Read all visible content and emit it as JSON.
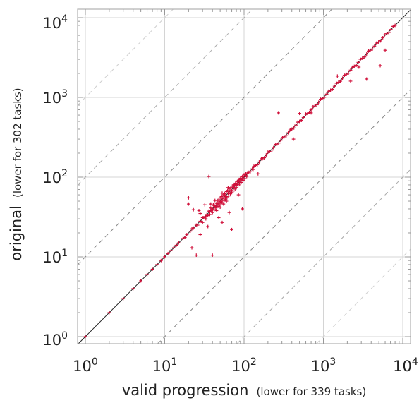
{
  "chart_data": {
    "type": "scatter",
    "scale": "log-log",
    "xlabel": "valid progression",
    "xlabel_note": "(lower for 339 tasks)",
    "ylabel": "original",
    "ylabel_note": "(lower for 302 tasks)",
    "xlim": [
      0.9,
      11000
    ],
    "ylim": [
      0.9,
      11000
    ],
    "ticks": [
      {
        "value": 1,
        "base": "10",
        "exp": "0"
      },
      {
        "value": 10,
        "base": "10",
        "exp": "1"
      },
      {
        "value": 100,
        "base": "10",
        "exp": "2"
      },
      {
        "value": 1000,
        "base": "10",
        "exp": "3"
      },
      {
        "value": 10000,
        "base": "10",
        "exp": "4"
      }
    ],
    "reference_lines": {
      "diagonal": "y = x",
      "dashed_factors": [
        10,
        100,
        1000
      ]
    },
    "grid": true,
    "marker": "+",
    "series": [
      {
        "color": "#d0103a",
        "points": [
          [
            1,
            1
          ],
          [
            2,
            2
          ],
          [
            3,
            3
          ],
          [
            4,
            4
          ],
          [
            5,
            5
          ],
          [
            6,
            6
          ],
          [
            7,
            7
          ],
          [
            8,
            8
          ],
          [
            9,
            9
          ],
          [
            10,
            10
          ],
          [
            11,
            11
          ],
          [
            12,
            12
          ],
          [
            13,
            13
          ],
          [
            14,
            14
          ],
          [
            15,
            15
          ],
          [
            17,
            17
          ],
          [
            19,
            19
          ],
          [
            21,
            21
          ],
          [
            23,
            23
          ],
          [
            25,
            25
          ],
          [
            28,
            28
          ],
          [
            31,
            31
          ],
          [
            34,
            34
          ],
          [
            37,
            37
          ],
          [
            40,
            40
          ],
          [
            43,
            43
          ],
          [
            46,
            46
          ],
          [
            50,
            50
          ],
          [
            54,
            54
          ],
          [
            58,
            58
          ],
          [
            63,
            63
          ],
          [
            68,
            68
          ],
          [
            74,
            74
          ],
          [
            80,
            80
          ],
          [
            87,
            87
          ],
          [
            95,
            95
          ],
          [
            105,
            105
          ],
          [
            115,
            115
          ],
          [
            127,
            127
          ],
          [
            140,
            140
          ],
          [
            155,
            155
          ],
          [
            170,
            170
          ],
          [
            190,
            190
          ],
          [
            210,
            210
          ],
          [
            235,
            235
          ],
          [
            260,
            260
          ],
          [
            290,
            290
          ],
          [
            320,
            320
          ],
          [
            360,
            360
          ],
          [
            400,
            400
          ],
          [
            450,
            450
          ],
          [
            500,
            500
          ],
          [
            560,
            560
          ],
          [
            630,
            630
          ],
          [
            700,
            700
          ],
          [
            780,
            780
          ],
          [
            870,
            870
          ],
          [
            970,
            970
          ],
          [
            1100,
            1100
          ],
          [
            1230,
            1230
          ],
          [
            1380,
            1380
          ],
          [
            1550,
            1550
          ],
          [
            1740,
            1740
          ],
          [
            1950,
            1950
          ],
          [
            2200,
            2200
          ],
          [
            2450,
            2450
          ],
          [
            2750,
            2750
          ],
          [
            3100,
            3100
          ],
          [
            3500,
            3500
          ],
          [
            3900,
            3900
          ],
          [
            4400,
            4400
          ],
          [
            4950,
            4950
          ],
          [
            5600,
            5600
          ],
          [
            6300,
            6300
          ],
          [
            7100,
            7100
          ],
          [
            8000,
            8000
          ],
          [
            18,
            17.5
          ],
          [
            22,
            22.5
          ],
          [
            26,
            25
          ],
          [
            30,
            31
          ],
          [
            33,
            32
          ],
          [
            36,
            37.5
          ],
          [
            39,
            38
          ],
          [
            42,
            44
          ],
          [
            45,
            43
          ],
          [
            48,
            49
          ],
          [
            52,
            50
          ],
          [
            56,
            58
          ],
          [
            60,
            57
          ],
          [
            65,
            67
          ],
          [
            70,
            68
          ],
          [
            76,
            79
          ],
          [
            83,
            81
          ],
          [
            90,
            93
          ],
          [
            98,
            96
          ],
          [
            110,
            113
          ],
          [
            120,
            117
          ],
          [
            133,
            137
          ],
          [
            147,
            143
          ],
          [
            165,
            170
          ],
          [
            180,
            175
          ],
          [
            200,
            206
          ],
          [
            225,
            219
          ],
          [
            250,
            258
          ],
          [
            275,
            268
          ],
          [
            305,
            314
          ],
          [
            340,
            331
          ],
          [
            380,
            391
          ],
          [
            425,
            414
          ],
          [
            475,
            489
          ],
          [
            530,
            516
          ],
          [
            600,
            618
          ],
          [
            665,
            648
          ],
          [
            740,
            762
          ],
          [
            830,
            808
          ],
          [
            920,
            948
          ],
          [
            1030,
            1003
          ],
          [
            1160,
            1195
          ],
          [
            1300,
            1266
          ],
          [
            1460,
            1504
          ],
          [
            1640,
            1597
          ],
          [
            1840,
            1895
          ],
          [
            2070,
            2016
          ],
          [
            2320,
            2390
          ],
          [
            2600,
            2532
          ],
          [
            2920,
            3008
          ],
          [
            3300,
            3214
          ],
          [
            3700,
            3811
          ],
          [
            4150,
            4041
          ],
          [
            4650,
            4790
          ],
          [
            5250,
            5113
          ],
          [
            5900,
            6077
          ],
          [
            6700,
            6525
          ],
          [
            7550,
            7777
          ],
          [
            30,
            27
          ],
          [
            33,
            30
          ],
          [
            35,
            33
          ],
          [
            37,
            34
          ],
          [
            38,
            41
          ],
          [
            40,
            36
          ],
          [
            41,
            45
          ],
          [
            42,
            39
          ],
          [
            44,
            41
          ],
          [
            45,
            47
          ],
          [
            46,
            51
          ],
          [
            47,
            43
          ],
          [
            48,
            52
          ],
          [
            49,
            45
          ],
          [
            50,
            55
          ],
          [
            51,
            47
          ],
          [
            52,
            57
          ],
          [
            53,
            48
          ],
          [
            55,
            60
          ],
          [
            56,
            51
          ],
          [
            57,
            62
          ],
          [
            58,
            53
          ],
          [
            60,
            66
          ],
          [
            61,
            55
          ],
          [
            62,
            68
          ],
          [
            64,
            58
          ],
          [
            65,
            71
          ],
          [
            67,
            62
          ],
          [
            68,
            74
          ],
          [
            70,
            64
          ],
          [
            71,
            77
          ],
          [
            73,
            67
          ],
          [
            75,
            81
          ],
          [
            77,
            71
          ],
          [
            78,
            84
          ],
          [
            80,
            74
          ],
          [
            82,
            88
          ],
          [
            84,
            78
          ],
          [
            86,
            92
          ],
          [
            88,
            82
          ],
          [
            90,
            97
          ],
          [
            92,
            86
          ],
          [
            95,
            101
          ],
          [
            97,
            91
          ],
          [
            100,
            107
          ],
          [
            102,
            96
          ],
          [
            105,
            110
          ],
          [
            108,
            102
          ],
          [
            45,
            38
          ],
          [
            50,
            42
          ],
          [
            55,
            46
          ],
          [
            60,
            50
          ],
          [
            38,
            46
          ],
          [
            43,
            51
          ],
          [
            53,
            63
          ],
          [
            63,
            74
          ],
          [
            20,
            55
          ],
          [
            20,
            46
          ],
          [
            23,
            39
          ],
          [
            32,
            45
          ],
          [
            27,
            38
          ],
          [
            28,
            35
          ],
          [
            36,
            102
          ],
          [
            35,
            24
          ],
          [
            48,
            31
          ],
          [
            53,
            27
          ],
          [
            65,
            36
          ],
          [
            22,
            13
          ],
          [
            28,
            19
          ],
          [
            25,
            10.5
          ],
          [
            40,
            10.5
          ],
          [
            70,
            22
          ],
          [
            85,
            60
          ],
          [
            95,
            40
          ],
          [
            130,
            125
          ],
          [
            150,
            110
          ],
          [
            270,
            640
          ],
          [
            420,
            300
          ],
          [
            500,
            630
          ],
          [
            700,
            640
          ],
          [
            1500,
            1850
          ],
          [
            2200,
            1600
          ],
          [
            2800,
            2400
          ],
          [
            3500,
            1700
          ],
          [
            5200,
            2500
          ],
          [
            6000,
            3900
          ]
        ]
      }
    ]
  }
}
